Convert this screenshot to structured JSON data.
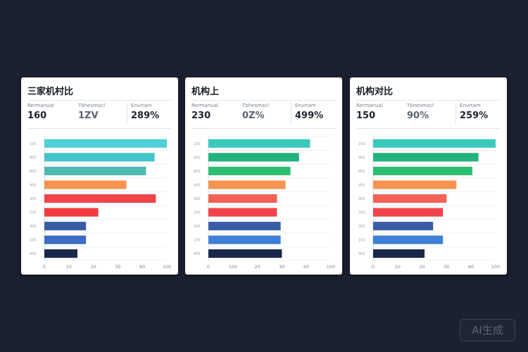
{
  "badge": "AI生成",
  "cards": [
    {
      "title": "三家机村比",
      "stats": [
        {
          "label": "Rermanual",
          "value": "160"
        },
        {
          "label": "Tbhesmacl",
          "value": "1ZV"
        },
        {
          "label": "Envrtam",
          "value": "289%"
        }
      ]
    },
    {
      "title": "机构上",
      "stats": [
        {
          "label": "Rermanual",
          "value": "230"
        },
        {
          "label": "Tbhesmacl",
          "value": "0Z%"
        },
        {
          "label": "Envrtam",
          "value": "499%"
        }
      ]
    },
    {
      "title": "机构对比",
      "stats": [
        {
          "label": "Rermanual",
          "value": "150"
        },
        {
          "label": "Tbhesmacl",
          "value": "90%"
        },
        {
          "label": "Envrtam",
          "value": "259%"
        }
      ]
    }
  ],
  "chart_data": [
    {
      "type": "bar",
      "orientation": "horizontal",
      "categories": [
        "100",
        "900",
        "800",
        "400",
        "300",
        "200",
        "300",
        "100",
        "400"
      ],
      "xticks": [
        "0",
        "10",
        "20",
        "30",
        "60",
        "100"
      ],
      "values": [
        100,
        90,
        83,
        67,
        91,
        44,
        34,
        34,
        27
      ],
      "colors": [
        "#4fcfd6",
        "#45c4c9",
        "#4fb9b4",
        "#f59451",
        "#f0434a",
        "#f23b3f",
        "#3a5ca8",
        "#3d6dc6",
        "#17284a"
      ],
      "xlim": [
        0,
        100
      ],
      "grid": true
    },
    {
      "type": "bar",
      "orientation": "horizontal",
      "categories": [
        "100",
        "900",
        "800",
        "400",
        "300",
        "200",
        "300",
        "100",
        "400"
      ],
      "xticks": [
        "0",
        "100",
        "20",
        "30",
        "60",
        "100"
      ],
      "values": [
        83,
        74,
        67,
        63,
        56,
        56,
        59,
        59,
        60
      ],
      "colors": [
        "#3cc8bd",
        "#22b37e",
        "#2dbd72",
        "#f59451",
        "#f26153",
        "#f0434a",
        "#3a5ca8",
        "#3f7fd8",
        "#17284a"
      ],
      "xlim": [
        0,
        100
      ],
      "grid": true
    },
    {
      "type": "bar",
      "orientation": "horizontal",
      "categories": [
        "100",
        "900",
        "800",
        "400",
        "300",
        "200",
        "300",
        "100",
        "400"
      ],
      "xticks": [
        "0",
        "10",
        "20",
        "30",
        "60",
        "100"
      ],
      "values": [
        100,
        86,
        81,
        68,
        60,
        57,
        49,
        57,
        42
      ],
      "colors": [
        "#3cc8bd",
        "#22b37e",
        "#2dbd72",
        "#f59451",
        "#f26153",
        "#f0434a",
        "#3a5ca8",
        "#3f7fd8",
        "#17284a"
      ],
      "xlim": [
        0,
        100
      ],
      "grid": true
    }
  ]
}
